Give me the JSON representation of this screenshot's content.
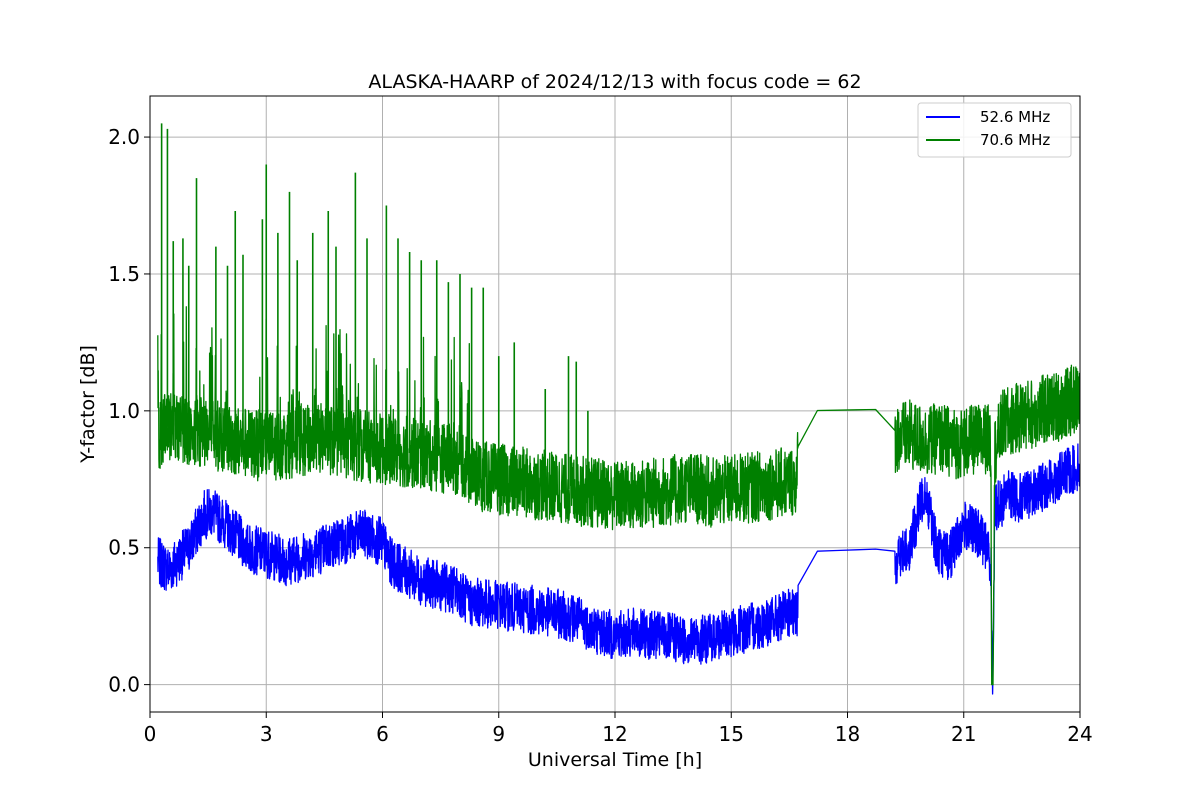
{
  "chart_data": {
    "type": "line",
    "title": "ALASKA-HAARP of 2024/12/13 with focus code = 62",
    "xlabel": "Universal Time [h]",
    "ylabel": "Y-factor [dB]",
    "xlim": [
      0,
      24
    ],
    "ylim": [
      -0.1,
      2.15
    ],
    "xticks": [
      0,
      3,
      6,
      9,
      12,
      15,
      18,
      21,
      24
    ],
    "xtick_labels": [
      "0",
      "3",
      "6",
      "9",
      "12",
      "15",
      "18",
      "21",
      "24"
    ],
    "yticks": [
      0.0,
      0.5,
      1.0,
      1.5,
      2.0
    ],
    "ytick_labels": [
      "0.0",
      "0.5",
      "1.0",
      "1.5",
      "2.0"
    ],
    "grid": true,
    "legend_position": "top-right",
    "series": [
      {
        "name": "52.6 MHz",
        "color": "#0000ff",
        "x": [
          0.2,
          0.5,
          1.0,
          1.4,
          1.6,
          2.0,
          2.5,
          3.0,
          3.5,
          4.0,
          4.5,
          5.0,
          5.5,
          6.0,
          6.2,
          6.5,
          7.0,
          7.5,
          8.0,
          8.2,
          8.5,
          9.0,
          9.5,
          10.0,
          10.5,
          11.0,
          11.5,
          12.0,
          12.5,
          13.0,
          13.5,
          14.0,
          14.5,
          15.0,
          15.5,
          16.0,
          16.5,
          16.7,
          16.75,
          18.75,
          18.8,
          19.2,
          19.6,
          20.0,
          20.3,
          20.6,
          21.0,
          21.4,
          21.6,
          21.7,
          21.72,
          21.75,
          21.8,
          22.0,
          22.05,
          22.5,
          23.0,
          23.5,
          24.0
        ],
        "values": [
          0.45,
          0.42,
          0.5,
          0.62,
          0.63,
          0.58,
          0.5,
          0.48,
          0.45,
          0.47,
          0.5,
          0.53,
          0.55,
          0.52,
          0.45,
          0.42,
          0.38,
          0.36,
          0.34,
          0.3,
          0.3,
          0.29,
          0.28,
          0.27,
          0.26,
          0.24,
          0.2,
          0.18,
          0.19,
          0.18,
          0.17,
          0.16,
          0.17,
          0.19,
          0.21,
          0.23,
          0.26,
          0.25,
          0.485,
          0.495,
          0.4,
          0.45,
          0.5,
          0.72,
          0.5,
          0.46,
          0.58,
          0.55,
          0.5,
          0.45,
          0.18,
          0.0,
          0.65,
          0.66,
          0.7,
          0.68,
          0.72,
          0.76,
          0.8
        ]
      },
      {
        "name": "70.6 MHz",
        "color": "#008000",
        "x": [
          0.2,
          0.5,
          1.0,
          1.5,
          2.0,
          2.5,
          3.0,
          3.5,
          4.0,
          4.5,
          5.0,
          5.5,
          6.0,
          6.5,
          7.0,
          7.5,
          8.0,
          8.3,
          8.6,
          9.0,
          9.5,
          10.0,
          10.5,
          11.0,
          11.5,
          12.0,
          12.5,
          13.0,
          13.5,
          14.0,
          14.5,
          15.0,
          15.5,
          16.0,
          16.5,
          16.7,
          16.75,
          18.75,
          18.8,
          19.2,
          19.6,
          20.0,
          20.4,
          20.8,
          21.2,
          21.6,
          21.7,
          21.72,
          21.75,
          21.8,
          22.0,
          22.05,
          22.5,
          23.0,
          23.5,
          24.0
        ],
        "values": [
          0.9,
          0.95,
          0.93,
          0.92,
          0.9,
          0.88,
          0.87,
          0.88,
          0.89,
          0.9,
          0.88,
          0.87,
          0.86,
          0.85,
          0.84,
          0.83,
          0.82,
          0.78,
          0.76,
          0.75,
          0.74,
          0.73,
          0.72,
          0.71,
          0.7,
          0.69,
          0.69,
          0.7,
          0.71,
          0.72,
          0.7,
          0.71,
          0.72,
          0.73,
          0.74,
          0.75,
          1.0,
          1.005,
          0.88,
          0.9,
          0.91,
          0.89,
          0.9,
          0.88,
          0.89,
          0.9,
          0.88,
          0.0,
          0.0,
          0.85,
          0.95,
          0.95,
          0.98,
          1.0,
          1.02,
          1.05
        ],
        "spikes": [
          [
            0.3,
            2.05
          ],
          [
            0.45,
            2.03
          ],
          [
            0.6,
            1.62
          ],
          [
            0.85,
            1.63
          ],
          [
            1.0,
            1.53
          ],
          [
            1.2,
            1.85
          ],
          [
            1.7,
            1.6
          ],
          [
            2.0,
            1.53
          ],
          [
            2.2,
            1.73
          ],
          [
            2.4,
            1.57
          ],
          [
            2.9,
            1.7
          ],
          [
            3.0,
            1.9
          ],
          [
            3.3,
            1.65
          ],
          [
            3.6,
            1.8
          ],
          [
            3.8,
            1.55
          ],
          [
            4.2,
            1.65
          ],
          [
            4.6,
            1.73
          ],
          [
            4.8,
            1.6
          ],
          [
            5.3,
            1.87
          ],
          [
            5.6,
            1.63
          ],
          [
            6.1,
            1.75
          ],
          [
            6.4,
            1.63
          ],
          [
            6.7,
            1.58
          ],
          [
            7.0,
            1.55
          ],
          [
            7.4,
            1.55
          ],
          [
            7.7,
            1.47
          ],
          [
            8.0,
            1.5
          ],
          [
            8.3,
            1.45
          ],
          [
            8.6,
            1.45
          ],
          [
            9.0,
            1.2
          ],
          [
            9.4,
            1.25
          ],
          [
            10.2,
            1.08
          ],
          [
            10.8,
            1.2
          ],
          [
            11.0,
            1.18
          ],
          [
            11.3,
            1.0
          ]
        ]
      }
    ]
  }
}
